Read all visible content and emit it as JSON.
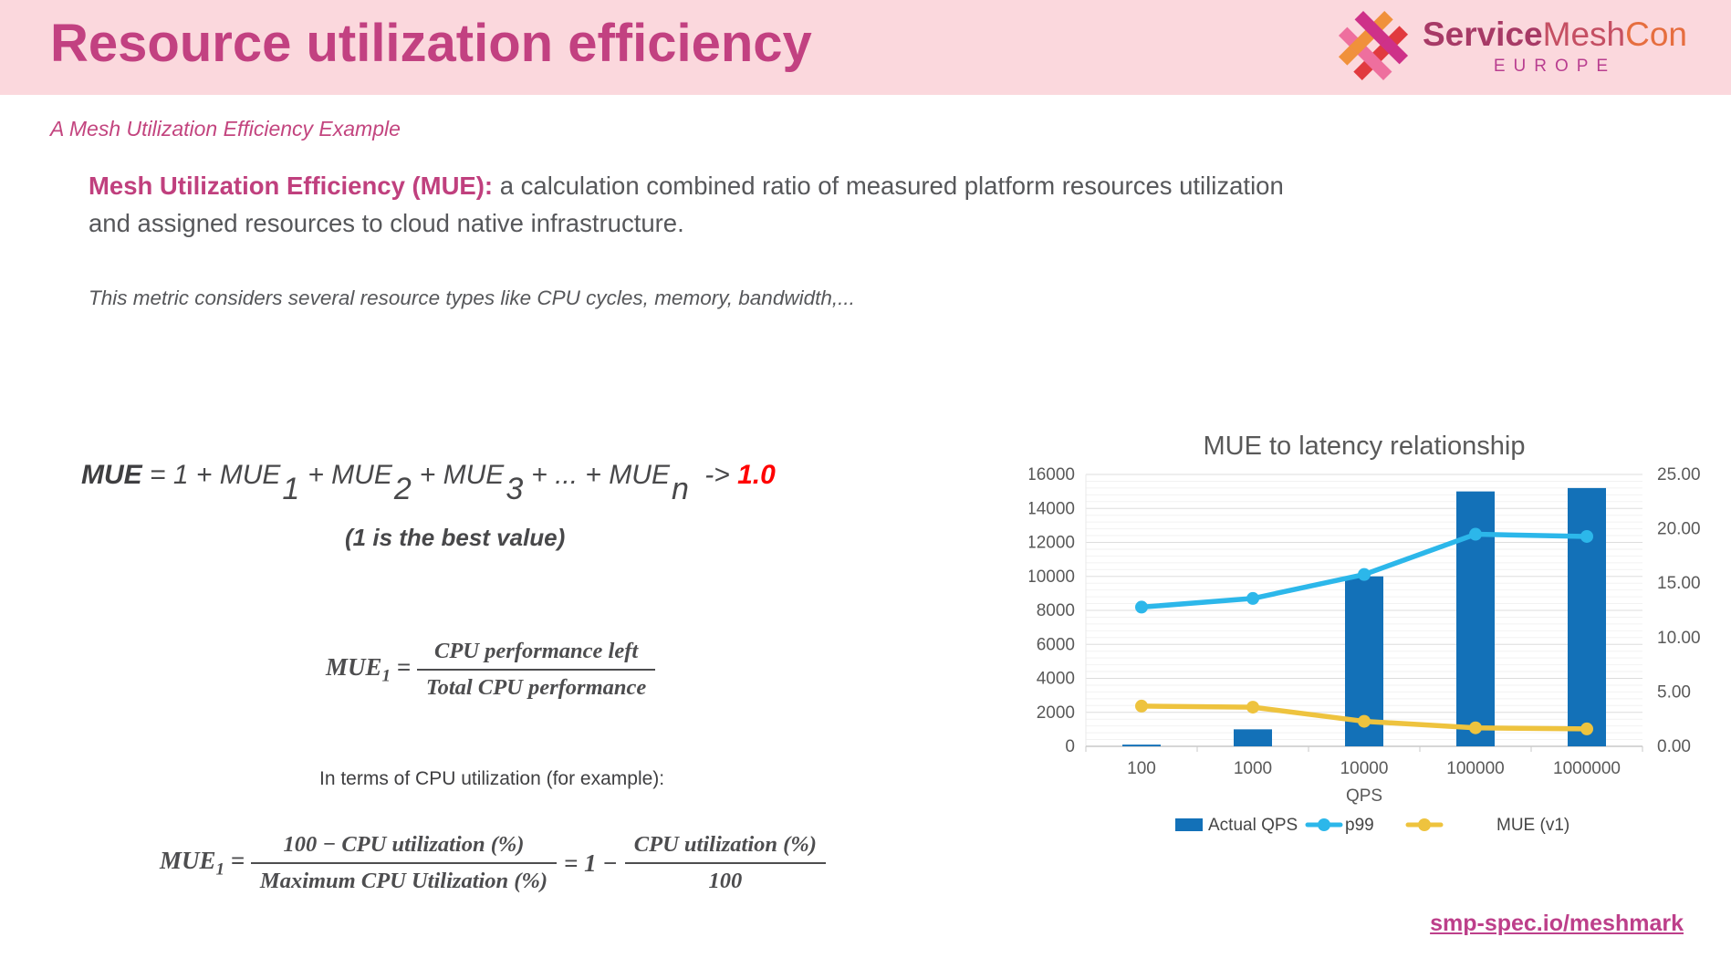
{
  "header": {
    "title": "Resource utilization efficiency",
    "logo": {
      "icon": "weave-icon",
      "service": "Service",
      "mesh": "Mesh",
      "con": "Con",
      "region": "EUROPE"
    }
  },
  "subtitle": "A Mesh Utilization Efficiency Example",
  "intro": {
    "lead": "Mesh Utilization Efficiency (MUE):",
    "rest": " a calculation combined ratio of measured platform resources utilization and assigned resources to cloud native infrastructure."
  },
  "note": "This metric considers several resource types like CPU cycles, memory, bandwidth,...",
  "formula_mue": {
    "segments": [
      {
        "t": "MUE",
        "s": "bold"
      },
      {
        "t": " = 1 + MUE",
        "s": ""
      },
      {
        "t": "1",
        "s": "sub"
      },
      {
        "t": "+ MUE",
        "s": ""
      },
      {
        "t": "2",
        "s": "sub"
      },
      {
        "t": "+ MUE",
        "s": ""
      },
      {
        "t": "3",
        "s": "sub"
      },
      {
        "t": "+ ... + MUE",
        "s": ""
      },
      {
        "t": "n",
        "s": "sub"
      },
      {
        "t": " -> ",
        "s": ""
      },
      {
        "t": "1.0",
        "s": "red"
      }
    ],
    "caption": "(1 is the best value)"
  },
  "frac1": {
    "lhs": "MUE",
    "sub": "1",
    "eq": " = ",
    "num": "CPU performance left",
    "den": "Total CPU performance"
  },
  "cpu_line": "In terms of CPU utilization (for example):",
  "frac2": {
    "lhs": "MUE",
    "sub": "1",
    "eq": " = ",
    "num1": "100 − CPU utilization (%)",
    "den1": "Maximum CPU Utilization (%)",
    "mid": "= 1 −",
    "num2": "CPU utilization (%)",
    "den2": "100"
  },
  "footer": {
    "link": "smp-spec.io/meshmark"
  },
  "colors": {
    "header_bg": "#fbd8dd",
    "title_pink": "#c24181",
    "accent_pink": "#c3457f",
    "body_gray": "#56575a",
    "formula_gray": "#4d4d4f",
    "highlight_red": "#ff0000",
    "link_pink": "#bd3f8a",
    "bar_blue": "#1371b8",
    "line_cyan": "#2cb7ea",
    "line_yellow": "#eec33e",
    "logo_service": "#a73a66",
    "logo_mesh": "#c54f63",
    "logo_con": "#e66e3f",
    "logo_europe": "#b93e90"
  },
  "chart_data": {
    "type": "bar+line",
    "title": "MUE to latency relationship",
    "categories": [
      "100",
      "1000",
      "10000",
      "100000",
      "1000000"
    ],
    "xlabel": "QPS",
    "left_axis": {
      "min": 0,
      "max": 16000,
      "step": 2000,
      "minor_step": 400
    },
    "right_axis": {
      "min": 0,
      "max": 25,
      "step": 5,
      "decimals": 2
    },
    "grid": "minor+major horizontal",
    "legend_position": "bottom",
    "series": [
      {
        "name": "Actual QPS",
        "type": "bar",
        "axis": "left",
        "color": "#1371b8",
        "values": [
          100,
          1000,
          10000,
          15000,
          15200
        ]
      },
      {
        "name": "p99",
        "type": "line",
        "axis": "right",
        "color": "#2cb7ea",
        "values": [
          12.8,
          13.6,
          15.8,
          19.5,
          19.3
        ]
      },
      {
        "name": "MUE (v1)",
        "type": "line",
        "axis": "right",
        "color": "#eec33e",
        "values": [
          3.7,
          3.6,
          2.3,
          1.7,
          1.6
        ]
      }
    ]
  }
}
